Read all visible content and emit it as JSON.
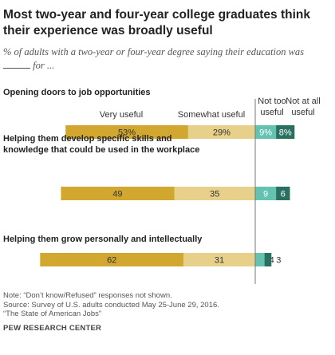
{
  "title": "Most two-year and four-year college graduates think their experience was broadly useful",
  "subtitle_prefix": "% of adults with a two-year or four-year degree saying their education was",
  "subtitle_suffix": "for ...",
  "notes": [
    "Note: “Don’t know/Refused” responses not shown.",
    "Source: Survey of U.S. adults conducted May 25-June 29, 2016.",
    "“The State of American Jobs”"
  ],
  "source_org": "PEW RESEARCH CENTER",
  "colors": {
    "very_useful": "#d1a730",
    "somewhat_useful": "#e6d08a",
    "not_too_useful": "#64c2b0",
    "not_at_all_useful": "#2a7061"
  },
  "chart_data": {
    "type": "bar",
    "orientation": "horizontal",
    "stacked": "diverging",
    "categories": [
      "Opening doors to job opportunities",
      "Helping them develop specific skills and knowledge that could be used in the workplace",
      "Helping them grow personally and intellectually"
    ],
    "category_lines": [
      [
        "Opening doors to job opportunities"
      ],
      [
        "Helping them develop specific skills and",
        "knowledge that could be used in the workplace"
      ],
      [
        "Helping them grow personally and intellectually"
      ]
    ],
    "series": [
      {
        "name": "Very useful",
        "header_lines": [
          "Very useful"
        ],
        "values": [
          53,
          49,
          62
        ],
        "labels": [
          "53%",
          "49",
          "62"
        ],
        "side": "positive",
        "label_color": "#333333"
      },
      {
        "name": "Somewhat useful",
        "header_lines": [
          "Somewhat useful"
        ],
        "values": [
          29,
          35,
          31
        ],
        "labels": [
          "29%",
          "35",
          "31"
        ],
        "side": "positive",
        "label_color": "#333333"
      },
      {
        "name": "Not too useful",
        "header_lines": [
          "Not too",
          "useful"
        ],
        "values": [
          9,
          9,
          4
        ],
        "labels": [
          "9%",
          "9",
          "4"
        ],
        "side": "negative",
        "label_color": "#ffffff"
      },
      {
        "name": "Not at all useful",
        "header_lines": [
          "Not at all",
          "useful"
        ],
        "values": [
          8,
          6,
          3
        ],
        "labels": [
          "8%",
          "6",
          "3"
        ],
        "side": "negative",
        "label_color": "#ffffff"
      }
    ]
  }
}
